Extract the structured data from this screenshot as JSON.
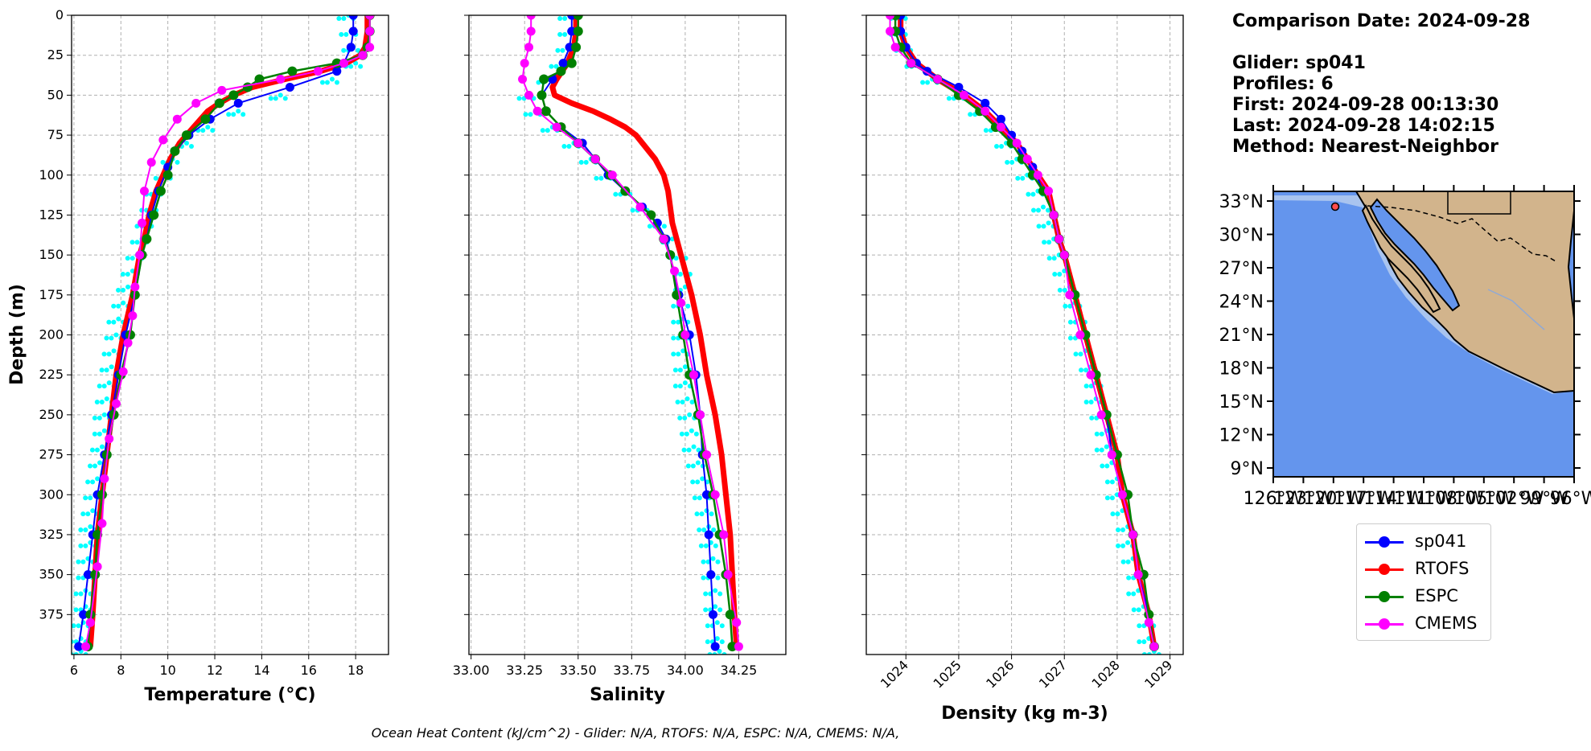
{
  "info": {
    "comparison_date": "Comparison Date: 2024-09-28",
    "glider": "Glider: sp041",
    "profiles": "Profiles: 6",
    "first": "First: 2024-09-28 00:13:30",
    "last": "Last: 2024-09-28 14:02:15",
    "method": "Method: Nearest-Neighbor"
  },
  "footer": "Ocean Heat Content (kJ/cm^2) - Glider: N/A,  RTOFS: N/A,  ESPC: N/A,  CMEMS: N/A,",
  "colors": {
    "sp041": "#0000ff",
    "RTOFS": "#ff0000",
    "ESPC": "#008000",
    "CMEMS": "#ff00ff",
    "glider_raw": "#00ffff",
    "ocean": "#6495ed",
    "land": "#d2b48c"
  },
  "legend": [
    {
      "name": "sp041",
      "color": "#0000ff"
    },
    {
      "name": "RTOFS",
      "color": "#ff0000"
    },
    {
      "name": "ESPC",
      "color": "#008000"
    },
    {
      "name": "CMEMS",
      "color": "#ff00ff"
    }
  ],
  "map": {
    "lat_labels": [
      "33°N",
      "30°N",
      "27°N",
      "24°N",
      "21°N",
      "18°N",
      "15°N",
      "12°N",
      "9°N"
    ],
    "lon_labels": [
      "126°W",
      "123°W",
      "120°W",
      "117°W",
      "114°W",
      "111°W",
      "108°W",
      "105°W",
      "102°W",
      "99°W",
      "96°W"
    ],
    "glider_marker": {
      "lon": -120.0,
      "lat": 32.4
    }
  },
  "chart_data": [
    {
      "type": "line",
      "xlabel": "Temperature (°C)",
      "ylabel": "Depth (m)",
      "xlim": [
        5.9,
        19.4
      ],
      "ylim": [
        400,
        0
      ],
      "xticks": [
        6,
        8,
        10,
        12,
        14,
        16,
        18
      ],
      "yticks": [
        0,
        25,
        50,
        75,
        100,
        125,
        150,
        175,
        200,
        225,
        250,
        275,
        300,
        325,
        350,
        375
      ],
      "grid": true,
      "series": [
        {
          "name": "sp041",
          "depth": [
            0,
            10,
            20,
            30,
            35,
            45,
            55,
            65,
            75,
            85,
            95,
            110,
            125,
            140,
            150,
            175,
            200,
            225,
            250,
            275,
            300,
            325,
            350,
            375,
            395
          ],
          "values": [
            17.9,
            17.9,
            17.8,
            17.5,
            17.2,
            15.2,
            13.0,
            11.8,
            10.9,
            10.3,
            10.0,
            9.6,
            9.3,
            9.1,
            8.9,
            8.6,
            8.2,
            7.9,
            7.6,
            7.3,
            7.0,
            6.8,
            6.6,
            6.4,
            6.2
          ]
        },
        {
          "name": "RTOFS",
          "depth": [
            0,
            10,
            20,
            25,
            30,
            35,
            40,
            45,
            50,
            55,
            60,
            70,
            80,
            90,
            100,
            110,
            125,
            140,
            150,
            175,
            200,
            225,
            250,
            275,
            300,
            325,
            350,
            375,
            395
          ],
          "values": [
            18.5,
            18.5,
            18.4,
            18.2,
            17.6,
            16.5,
            15.0,
            13.6,
            12.8,
            12.2,
            11.7,
            11.1,
            10.5,
            10.1,
            9.8,
            9.5,
            9.2,
            9.0,
            8.8,
            8.5,
            8.1,
            7.8,
            7.6,
            7.4,
            7.2,
            7.0,
            6.9,
            6.8,
            6.7
          ]
        },
        {
          "name": "ESPC",
          "depth": [
            0,
            10,
            20,
            25,
            30,
            35,
            40,
            45,
            50,
            55,
            65,
            75,
            85,
            100,
            110,
            125,
            140,
            150,
            175,
            200,
            225,
            250,
            275,
            300,
            325,
            350,
            375,
            395
          ],
          "values": [
            18.6,
            18.6,
            18.5,
            18.3,
            17.2,
            15.3,
            13.9,
            13.4,
            12.8,
            12.2,
            11.6,
            10.8,
            10.3,
            10.0,
            9.7,
            9.4,
            9.1,
            8.9,
            8.6,
            8.4,
            8.0,
            7.7,
            7.4,
            7.2,
            7.0,
            6.9,
            6.7,
            6.6
          ]
        },
        {
          "name": "CMEMS",
          "depth": [
            0,
            10,
            20,
            25,
            30,
            35,
            40,
            47,
            55,
            65,
            78,
            92,
            110,
            130,
            150,
            170,
            188,
            205,
            223,
            243,
            265,
            290,
            318,
            345,
            380,
            395
          ],
          "values": [
            18.6,
            18.6,
            18.6,
            18.3,
            17.5,
            16.4,
            14.8,
            12.3,
            11.2,
            10.4,
            9.8,
            9.3,
            9.0,
            8.9,
            8.8,
            8.6,
            8.5,
            8.3,
            8.1,
            7.8,
            7.5,
            7.3,
            7.2,
            7.0,
            6.7,
            6.5
          ]
        },
        {
          "name": "glider_raw",
          "depth": [
            0,
            10,
            20,
            30,
            40,
            50,
            60,
            70,
            80,
            90,
            100,
            110,
            120,
            130,
            140,
            150,
            160,
            170,
            180,
            190,
            200,
            210,
            220,
            230,
            240,
            250,
            260,
            270,
            280,
            290,
            300,
            310,
            320,
            330,
            340,
            350,
            360,
            370,
            380,
            390,
            398
          ],
          "values": [
            17.7,
            17.8,
            17.9,
            18.0,
            17.0,
            14.8,
            13.0,
            11.7,
            10.8,
            10.2,
            9.9,
            9.5,
            9.3,
            9.1,
            8.9,
            8.7,
            8.5,
            8.3,
            8.1,
            7.9,
            7.8,
            7.7,
            7.6,
            7.5,
            7.4,
            7.3,
            7.3,
            7.2,
            7.1,
            7.0,
            6.9,
            6.8,
            6.7,
            6.7,
            6.6,
            6.6,
            6.5,
            6.5,
            6.4,
            6.3,
            6.3
          ]
        }
      ]
    },
    {
      "type": "line",
      "xlabel": "Salinity",
      "xlim": [
        32.99,
        34.47
      ],
      "ylim": [
        400,
        0
      ],
      "xticks": [
        33.0,
        33.25,
        33.5,
        33.75,
        34.0,
        34.25
      ],
      "grid": true,
      "series": [
        {
          "name": "sp041",
          "depth": [
            0,
            10,
            20,
            30,
            40,
            50,
            60,
            70,
            80,
            90,
            100,
            110,
            120,
            130,
            140,
            150,
            175,
            200,
            225,
            250,
            275,
            300,
            325,
            350,
            375,
            395
          ],
          "values": [
            33.47,
            33.47,
            33.46,
            33.43,
            33.38,
            33.33,
            33.35,
            33.42,
            33.52,
            33.58,
            33.64,
            33.72,
            33.8,
            33.87,
            33.91,
            33.93,
            33.97,
            34.02,
            34.05,
            34.07,
            34.08,
            34.1,
            34.11,
            34.12,
            34.13,
            34.14
          ]
        },
        {
          "name": "RTOFS",
          "depth": [
            0,
            10,
            20,
            30,
            40,
            45,
            50,
            55,
            60,
            65,
            70,
            75,
            80,
            90,
            100,
            110,
            120,
            130,
            150,
            175,
            200,
            225,
            250,
            275,
            300,
            325,
            350,
            375,
            395
          ],
          "values": [
            33.49,
            33.49,
            33.48,
            33.45,
            33.4,
            33.38,
            33.39,
            33.47,
            33.57,
            33.65,
            33.72,
            33.77,
            33.8,
            33.86,
            33.9,
            33.92,
            33.93,
            33.94,
            33.98,
            34.03,
            34.07,
            34.1,
            34.14,
            34.17,
            34.19,
            34.21,
            34.22,
            34.23,
            34.24
          ]
        },
        {
          "name": "ESPC",
          "depth": [
            0,
            10,
            20,
            30,
            35,
            40,
            50,
            60,
            70,
            80,
            90,
            100,
            110,
            125,
            140,
            150,
            175,
            200,
            225,
            250,
            275,
            300,
            325,
            350,
            375,
            395
          ],
          "values": [
            33.5,
            33.5,
            33.49,
            33.47,
            33.42,
            33.34,
            33.33,
            33.35,
            33.42,
            33.5,
            33.58,
            33.65,
            33.72,
            33.84,
            33.9,
            33.93,
            33.96,
            33.99,
            34.02,
            34.06,
            34.09,
            34.13,
            34.16,
            34.19,
            34.21,
            34.22
          ]
        },
        {
          "name": "CMEMS",
          "depth": [
            0,
            10,
            20,
            30,
            40,
            50,
            60,
            70,
            80,
            90,
            100,
            120,
            140,
            160,
            180,
            200,
            225,
            250,
            275,
            300,
            325,
            350,
            380,
            395
          ],
          "values": [
            33.28,
            33.28,
            33.27,
            33.25,
            33.24,
            33.27,
            33.31,
            33.4,
            33.5,
            33.58,
            33.66,
            33.79,
            33.9,
            33.95,
            33.98,
            34.0,
            34.04,
            34.07,
            34.1,
            34.14,
            34.18,
            34.2,
            34.24,
            34.25
          ]
        },
        {
          "name": "glider_raw",
          "depth": [
            0,
            10,
            20,
            30,
            40,
            50,
            60,
            70,
            80,
            90,
            100,
            110,
            120,
            130,
            140,
            150,
            160,
            170,
            180,
            190,
            200,
            210,
            220,
            230,
            240,
            250,
            260,
            270,
            280,
            290,
            300,
            310,
            320,
            330,
            340,
            350,
            360,
            370,
            380,
            390,
            398
          ],
          "values": [
            33.46,
            33.46,
            33.45,
            33.42,
            33.36,
            33.27,
            33.3,
            33.38,
            33.48,
            33.56,
            33.63,
            33.72,
            33.8,
            33.88,
            33.94,
            33.98,
            34.0,
            34.0,
            33.99,
            33.99,
            33.99,
            33.99,
            34.0,
            34.0,
            34.01,
            34.02,
            34.03,
            34.04,
            34.06,
            34.08,
            34.09,
            34.1,
            34.11,
            34.12,
            34.13,
            34.13,
            34.14,
            34.14,
            34.15,
            34.15,
            34.16
          ]
        }
      ]
    },
    {
      "type": "line",
      "xlabel": "Density (kg m-3)",
      "xlim": [
        1023.25,
        1029.25
      ],
      "ylim": [
        400,
        0
      ],
      "xticks": [
        1024,
        1025,
        1026,
        1027,
        1028,
        1029
      ],
      "grid": true,
      "series": [
        {
          "name": "sp041",
          "depth": [
            0,
            10,
            20,
            30,
            35,
            45,
            55,
            65,
            75,
            85,
            95,
            110,
            125,
            140,
            150,
            175,
            200,
            225,
            250,
            275,
            300,
            325,
            350,
            375,
            395
          ],
          "values": [
            1023.9,
            1023.9,
            1024.0,
            1024.2,
            1024.4,
            1025.0,
            1025.5,
            1025.8,
            1026.0,
            1026.2,
            1026.4,
            1026.6,
            1026.8,
            1026.9,
            1027.0,
            1027.2,
            1027.4,
            1027.6,
            1027.8,
            1027.9,
            1028.1,
            1028.3,
            1028.4,
            1028.6,
            1028.7
          ]
        },
        {
          "name": "RTOFS",
          "depth": [
            0,
            10,
            20,
            30,
            40,
            50,
            60,
            70,
            80,
            90,
            100,
            110,
            125,
            140,
            150,
            175,
            200,
            225,
            250,
            275,
            300,
            325,
            350,
            375,
            395
          ],
          "values": [
            1023.9,
            1023.9,
            1024.0,
            1024.2,
            1024.6,
            1025.1,
            1025.5,
            1025.8,
            1026.1,
            1026.3,
            1026.5,
            1026.7,
            1026.8,
            1026.9,
            1027.0,
            1027.2,
            1027.4,
            1027.6,
            1027.8,
            1028.0,
            1028.1,
            1028.3,
            1028.4,
            1028.6,
            1028.7
          ]
        },
        {
          "name": "ESPC",
          "depth": [
            0,
            10,
            20,
            30,
            40,
            50,
            60,
            70,
            80,
            90,
            100,
            110,
            125,
            140,
            150,
            175,
            200,
            225,
            250,
            275,
            300,
            325,
            350,
            375,
            395
          ],
          "values": [
            1023.8,
            1023.8,
            1023.9,
            1024.1,
            1024.6,
            1025.0,
            1025.4,
            1025.7,
            1026.0,
            1026.2,
            1026.4,
            1026.6,
            1026.8,
            1026.9,
            1027.0,
            1027.2,
            1027.4,
            1027.6,
            1027.8,
            1028.0,
            1028.2,
            1028.3,
            1028.5,
            1028.6,
            1028.7
          ]
        },
        {
          "name": "CMEMS",
          "depth": [
            0,
            10,
            20,
            30,
            40,
            50,
            60,
            70,
            80,
            90,
            100,
            110,
            125,
            140,
            150,
            175,
            200,
            225,
            250,
            275,
            300,
            325,
            350,
            380,
            395
          ],
          "values": [
            1023.7,
            1023.7,
            1023.8,
            1024.1,
            1024.6,
            1025.1,
            1025.5,
            1025.8,
            1026.1,
            1026.3,
            1026.5,
            1026.7,
            1026.8,
            1026.9,
            1027.0,
            1027.1,
            1027.3,
            1027.5,
            1027.7,
            1027.9,
            1028.1,
            1028.3,
            1028.4,
            1028.6,
            1028.7
          ]
        },
        {
          "name": "glider_raw",
          "depth": [
            0,
            10,
            20,
            30,
            40,
            50,
            60,
            70,
            80,
            90,
            100,
            110,
            120,
            130,
            140,
            150,
            160,
            170,
            180,
            190,
            200,
            210,
            220,
            230,
            240,
            250,
            260,
            270,
            280,
            290,
            300,
            310,
            320,
            330,
            340,
            350,
            360,
            370,
            380,
            390,
            398
          ],
          "values": [
            1023.9,
            1023.9,
            1024.0,
            1024.2,
            1024.5,
            1025.0,
            1025.4,
            1025.7,
            1025.9,
            1026.1,
            1026.3,
            1026.5,
            1026.6,
            1026.7,
            1026.8,
            1026.9,
            1027.0,
            1027.1,
            1027.2,
            1027.3,
            1027.3,
            1027.4,
            1027.5,
            1027.6,
            1027.6,
            1027.7,
            1027.8,
            1027.8,
            1027.9,
            1028.0,
            1028.0,
            1028.1,
            1028.2,
            1028.2,
            1028.3,
            1028.4,
            1028.4,
            1028.5,
            1028.6,
            1028.6,
            1028.7
          ]
        }
      ]
    }
  ]
}
